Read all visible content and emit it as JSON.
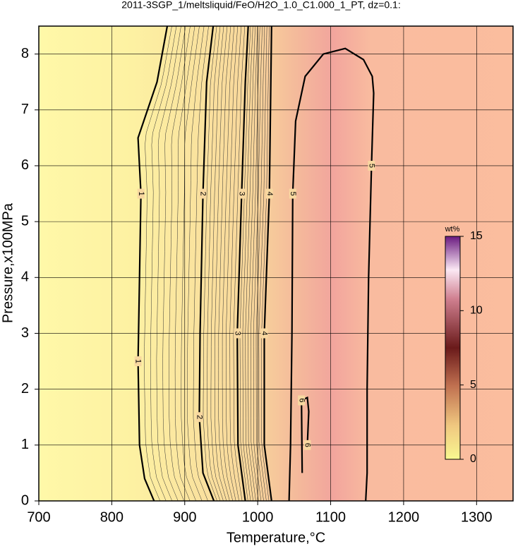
{
  "chart_data": {
    "type": "contour",
    "title": "2011-3SGP_1/meltsliquid/FeO/H2O_1.0_C1.000_1_PT, dz=0.1:",
    "x_label": "Temperature,°C",
    "y_label": "Pressure,x100MPa",
    "xlim": [
      700,
      1350
    ],
    "ylim": [
      0,
      8.5
    ],
    "xticks": [
      700,
      800,
      900,
      1000,
      1100,
      1200,
      1300
    ],
    "yticks": [
      0,
      1,
      2,
      3,
      4,
      5,
      6,
      7,
      8
    ],
    "grid": true,
    "contours": [
      {
        "level": 1,
        "x": [
          858,
          845,
          838,
          836,
          838,
          840,
          836,
          862,
          876
        ],
        "y": [
          0,
          0.4,
          1,
          2.5,
          4,
          5.5,
          6.5,
          7.5,
          8.5
        ]
      },
      {
        "level": 2,
        "x": [
          940,
          925,
          920,
          921,
          925,
          930,
          939
        ],
        "y": [
          0,
          0.5,
          1.5,
          3,
          5.5,
          7.5,
          8.5
        ]
      },
      {
        "level": 3,
        "x": [
          983,
          973,
          972,
          978,
          983,
          987
        ],
        "y": [
          0,
          1,
          3,
          5.5,
          7.5,
          8.5
        ]
      },
      {
        "level": 4,
        "x": [
          1019,
          1009,
          1009,
          1016,
          1019
        ],
        "y": [
          0,
          1,
          3,
          5.5,
          8.5
        ]
      },
      {
        "level": 5,
        "x": [
          1043,
          1045,
          1047,
          1048,
          1052,
          1065,
          1090,
          1120,
          1145,
          1157,
          1159,
          1156,
          1152,
          1150,
          1150,
          1148
        ],
        "y": [
          0,
          1,
          3,
          5.5,
          6.8,
          7.6,
          8.0,
          8.1,
          7.9,
          7.6,
          7.3,
          6,
          4,
          2,
          0.5,
          0
        ]
      },
      {
        "level": 6,
        "x": [
          1061,
          1060,
          1068,
          1070,
          1068
        ],
        "y": [
          0.5,
          1.8,
          1.85,
          1.6,
          1.0
        ]
      }
    ],
    "colorbar": {
      "label": "wt%",
      "lim": [
        0,
        15
      ],
      "ticks": [
        0,
        5,
        10,
        15
      ]
    }
  }
}
